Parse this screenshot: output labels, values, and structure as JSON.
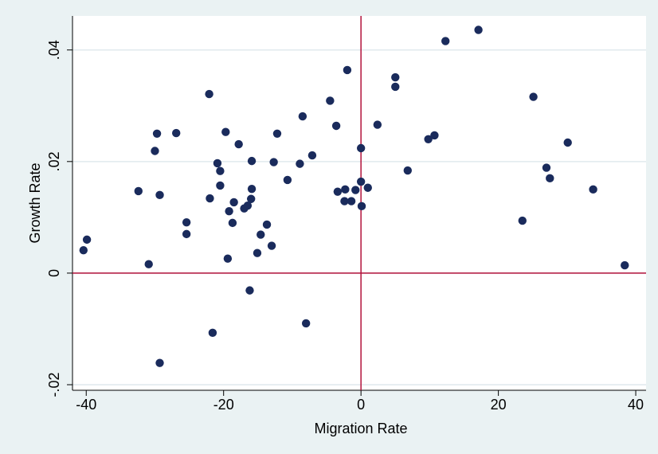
{
  "chart_data": {
    "type": "scatter",
    "x_label": "Migration Rate",
    "y_label": "Growth Rate",
    "x": [
      -40.4,
      -39.9,
      -32.4,
      -30.9,
      -30.0,
      -29.7,
      -29.3,
      -29.3,
      -26.9,
      -25.4,
      -25.4,
      -22.1,
      -22.0,
      -21.6,
      -20.9,
      -20.5,
      -20.5,
      -19.7,
      -19.4,
      -19.2,
      -18.7,
      -18.5,
      -17.8,
      -17.0,
      -16.5,
      -16.2,
      -16.0,
      -15.9,
      -15.9,
      -15.1,
      -14.6,
      -13.7,
      -13.0,
      -12.7,
      -12.2,
      -10.7,
      -8.9,
      -8.5,
      -8.0,
      -7.1,
      -4.5,
      -3.6,
      -3.4,
      -2.4,
      -2.3,
      -2.0,
      -1.4,
      -0.8,
      0.0,
      0.0,
      0.1,
      1.0,
      2.4,
      5.0,
      5.0,
      6.8,
      9.8,
      10.7,
      12.3,
      17.1,
      23.5,
      25.1,
      27.0,
      27.5,
      30.1,
      33.8,
      38.4
    ],
    "values": [
      0.0041,
      0.006,
      0.0147,
      0.0016,
      0.0219,
      0.025,
      0.014,
      -0.0161,
      0.0251,
      0.0091,
      0.007,
      0.0321,
      0.0134,
      -0.0107,
      0.0197,
      0.0183,
      0.0157,
      0.0253,
      0.0026,
      0.0111,
      0.009,
      0.0127,
      0.0231,
      0.0116,
      0.0121,
      -0.0031,
      0.0133,
      0.0151,
      0.0201,
      0.0036,
      0.0069,
      0.0087,
      0.0049,
      0.0199,
      0.025,
      0.0167,
      0.0196,
      0.0281,
      -0.009,
      0.0211,
      0.0309,
      0.0264,
      0.0146,
      0.0129,
      0.015,
      0.0364,
      0.0129,
      0.0149,
      0.0224,
      0.0164,
      0.012,
      0.0153,
      0.0266,
      0.0351,
      0.0334,
      0.0184,
      0.024,
      0.0247,
      0.0416,
      0.0436,
      0.0094,
      0.0316,
      0.0189,
      0.017,
      0.0234,
      0.015,
      0.0014
    ],
    "color": "#1a2b5c",
    "xlim": [
      -42,
      41.5
    ],
    "xticks": [
      -40,
      -20,
      0,
      20,
      40
    ],
    "ylim": [
      -0.021,
      0.0461
    ],
    "yticks": [
      {
        "value": -0.02,
        "label": "-.02"
      },
      0,
      {
        "value": 0.02,
        "label": ".02"
      },
      {
        "value": 0.04,
        "label": ".04"
      }
    ],
    "grid": true,
    "xline": 0,
    "yline": 0,
    "ref_color": "#b3123b"
  }
}
